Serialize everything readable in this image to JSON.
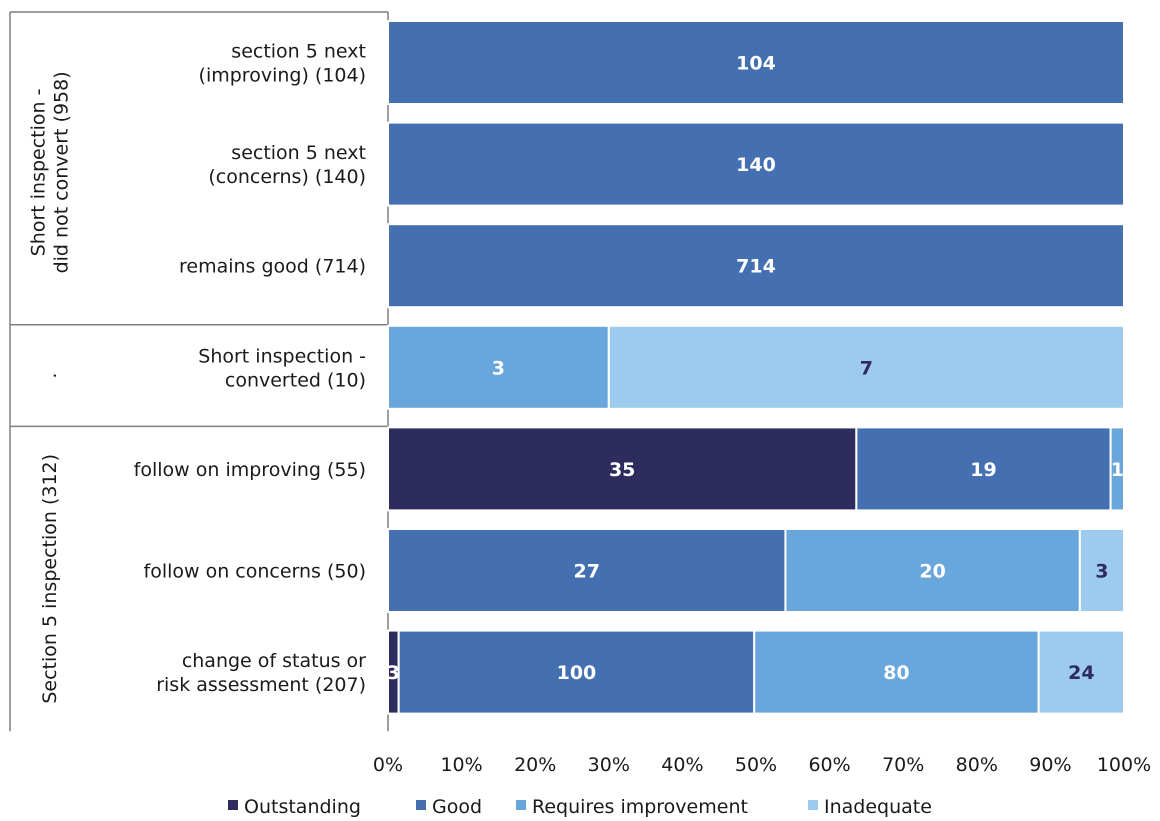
{
  "chart_data": {
    "type": "bar",
    "orientation": "horizontal",
    "stacked": "percent",
    "xlim": [
      0,
      100
    ],
    "x_ticks": [
      "0%",
      "10%",
      "20%",
      "30%",
      "40%",
      "50%",
      "60%",
      "70%",
      "80%",
      "90%",
      "100%"
    ],
    "legend_position": "bottom",
    "groups": [
      {
        "label": "Short inspection -\ndid not convert (958)",
        "rows": [
          0,
          1,
          2
        ]
      },
      {
        "label": ".",
        "rows": [
          3
        ]
      },
      {
        "label": "Section 5 inspection (312)",
        "rows": [
          4,
          5,
          6
        ]
      }
    ],
    "categories": [
      "section 5 next\n(improving) (104)",
      "section 5 next\n(concerns) (140)",
      "remains good (714)",
      "Short inspection -\nconverted (10)",
      "follow on improving (55)",
      "follow on concerns (50)",
      "change of status or\nrisk assessment (207)"
    ],
    "series": [
      {
        "name": "Outstanding",
        "color": "#2e2c5e",
        "values": [
          0,
          0,
          0,
          0,
          35,
          0,
          3
        ]
      },
      {
        "name": "Good",
        "color": "#4470b2",
        "values": [
          104,
          140,
          714,
          0,
          19,
          27,
          100
        ]
      },
      {
        "name": "Requires improvement",
        "color": "#68a6dc",
        "values": [
          0,
          0,
          0,
          3,
          1,
          20,
          80
        ]
      },
      {
        "name": "Inadequate",
        "color": "#9dcbef",
        "values": [
          0,
          0,
          0,
          7,
          0,
          3,
          24
        ]
      }
    ]
  }
}
